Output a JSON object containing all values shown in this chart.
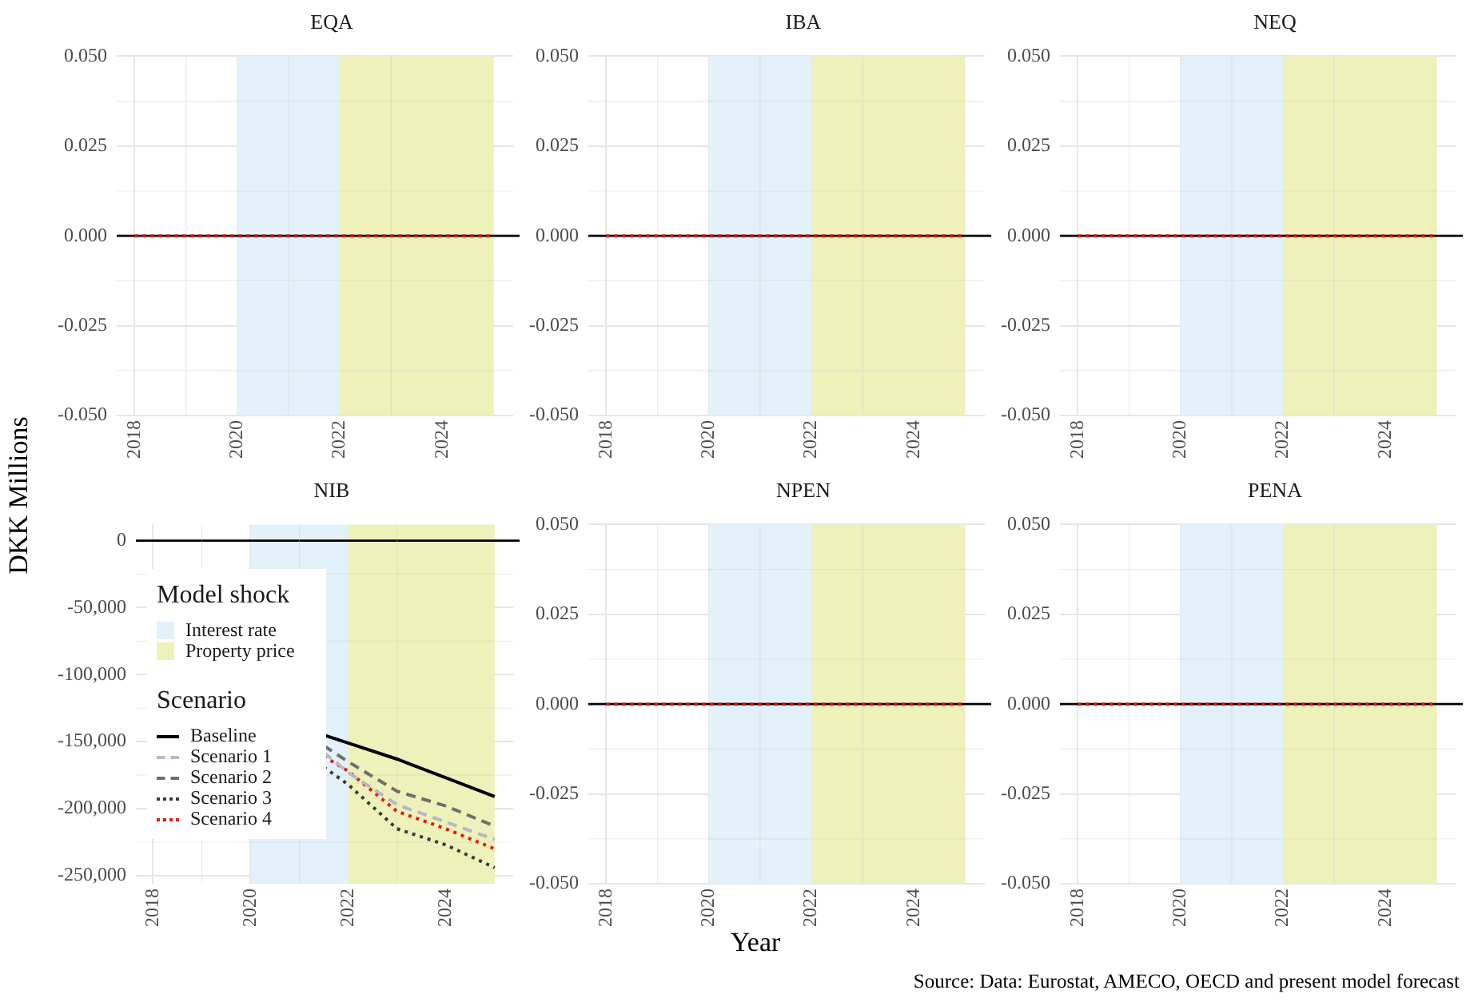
{
  "chart_data": [
    {
      "type": "line",
      "title": "EQA",
      "ylabel": "DKK Millions",
      "x": [
        2018,
        2019,
        2020,
        2021,
        2022,
        2023,
        2024,
        2025
      ],
      "xlim": [
        2017.65,
        2025.38
      ],
      "xticks": [
        2018,
        2020,
        2022,
        2024
      ],
      "ylim": [
        -0.05,
        0.05
      ],
      "yticks": [
        {
          "value": -0.05,
          "label": "-0.050"
        },
        {
          "value": -0.025,
          "label": "-0.025"
        },
        {
          "value": 0,
          "label": "0.000"
        },
        {
          "value": 0.025,
          "label": "0.025"
        },
        {
          "value": 0.05,
          "label": "0.050"
        }
      ],
      "grid": true,
      "bands": [
        {
          "axis": "x",
          "from": 2020,
          "to": 2022,
          "color": "#e3f1fa"
        },
        {
          "axis": "x",
          "from": 2022,
          "to": 2025,
          "color": "#eef1b9"
        }
      ],
      "ref_lines": [
        {
          "axis": "y",
          "value": 0,
          "color": "#000000"
        }
      ],
      "series": [
        {
          "color": "#e8190f",
          "line_style": "dotted",
          "values": [
            0,
            0,
            0,
            0,
            0,
            0,
            0,
            0
          ]
        }
      ]
    },
    {
      "type": "line",
      "title": "IBA",
      "x": [
        2018,
        2019,
        2020,
        2021,
        2022,
        2023,
        2024,
        2025
      ],
      "xlim": [
        2017.65,
        2025.38
      ],
      "xticks": [
        2018,
        2020,
        2022,
        2024
      ],
      "ylim": [
        -0.05,
        0.05
      ],
      "yticks": [
        {
          "value": -0.05,
          "label": "-0.050"
        },
        {
          "value": -0.025,
          "label": "-0.025"
        },
        {
          "value": 0,
          "label": "0.000"
        },
        {
          "value": 0.025,
          "label": "0.025"
        },
        {
          "value": 0.05,
          "label": "0.050"
        }
      ],
      "grid": true,
      "bands": [
        {
          "axis": "x",
          "from": 2020,
          "to": 2022,
          "color": "#e3f1fa"
        },
        {
          "axis": "x",
          "from": 2022,
          "to": 2025,
          "color": "#eef1b9"
        }
      ],
      "ref_lines": [
        {
          "axis": "y",
          "value": 0,
          "color": "#000000"
        }
      ],
      "series": [
        {
          "color": "#e8190f",
          "line_style": "dotted",
          "values": [
            0,
            0,
            0,
            0,
            0,
            0,
            0,
            0
          ]
        }
      ]
    },
    {
      "type": "line",
      "title": "NEQ",
      "x": [
        2018,
        2019,
        2020,
        2021,
        2022,
        2023,
        2024,
        2025
      ],
      "xlim": [
        2017.65,
        2025.38
      ],
      "xticks": [
        2018,
        2020,
        2022,
        2024
      ],
      "ylim": [
        -0.05,
        0.05
      ],
      "yticks": [
        {
          "value": -0.05,
          "label": "-0.050"
        },
        {
          "value": -0.025,
          "label": "-0.025"
        },
        {
          "value": 0,
          "label": "0.000"
        },
        {
          "value": 0.025,
          "label": "0.025"
        },
        {
          "value": 0.05,
          "label": "0.050"
        }
      ],
      "grid": true,
      "bands": [
        {
          "axis": "x",
          "from": 2020,
          "to": 2022,
          "color": "#e3f1fa"
        },
        {
          "axis": "x",
          "from": 2022,
          "to": 2025,
          "color": "#eef1b9"
        }
      ],
      "ref_lines": [
        {
          "axis": "y",
          "value": 0,
          "color": "#000000"
        }
      ],
      "series": [
        {
          "color": "#e8190f",
          "line_style": "dotted",
          "values": [
            0,
            0,
            0,
            0,
            0,
            0,
            0,
            0
          ]
        }
      ]
    },
    {
      "type": "line",
      "title": "NIB",
      "x": [
        2021.5,
        2022,
        2023,
        2024,
        2025
      ],
      "xlim": [
        2017.65,
        2025.38
      ],
      "xticks": [
        2018,
        2020,
        2022,
        2024
      ],
      "ylim": [
        -256000,
        12000
      ],
      "yticks": [
        {
          "value": -250000,
          "label": "-250,000"
        },
        {
          "value": -200000,
          "label": "-200,000"
        },
        {
          "value": -150000,
          "label": "-150,000"
        },
        {
          "value": -100000,
          "label": "-100,000"
        },
        {
          "value": -50000,
          "label": "-50,000"
        },
        0
      ],
      "grid": true,
      "legend": "left",
      "legend_title": "Scenario",
      "annotations": [
        "Model shock"
      ],
      "bands": [
        {
          "axis": "x",
          "from": 2020,
          "to": 2022,
          "label": "Interest rate",
          "color": "#e3f1fa"
        },
        {
          "axis": "x",
          "from": 2022,
          "to": 2025,
          "label": "Property price",
          "color": "#eef1b9"
        }
      ],
      "ref_lines": [
        {
          "axis": "y",
          "value": 0,
          "color": "#000000"
        }
      ],
      "series": [
        {
          "name": "Baseline",
          "color": "#000000",
          "line_style": "solid",
          "values": [
            -145000,
            -151000,
            -163000,
            -177000,
            -191000
          ]
        },
        {
          "name": "Scenario 1",
          "color": "#b3b9c8",
          "line_style": "dashed",
          "values": [
            -158000,
            -173000,
            -197000,
            -210000,
            -223000
          ]
        },
        {
          "name": "Scenario 2",
          "color": "#6e6e6e",
          "line_style": "dashed",
          "values": [
            -153000,
            -165000,
            -187000,
            -198000,
            -213000
          ]
        },
        {
          "name": "Scenario 3",
          "color": "#3a3a3a",
          "line_style": "dotted",
          "values": [
            -169000,
            -182000,
            -215000,
            -227000,
            -244000
          ]
        },
        {
          "name": "Scenario 4",
          "color": "#e8190f",
          "line_style": "dotted",
          "values": [
            -161000,
            -172000,
            -202000,
            -215000,
            -230000
          ]
        }
      ]
    },
    {
      "type": "line",
      "title": "NPEN",
      "xlabel": "Year",
      "x": [
        2018,
        2019,
        2020,
        2021,
        2022,
        2023,
        2024,
        2025
      ],
      "xlim": [
        2017.65,
        2025.38
      ],
      "xticks": [
        2018,
        2020,
        2022,
        2024
      ],
      "ylim": [
        -0.05,
        0.05
      ],
      "yticks": [
        {
          "value": -0.05,
          "label": "-0.050"
        },
        {
          "value": -0.025,
          "label": "-0.025"
        },
        {
          "value": 0,
          "label": "0.000"
        },
        {
          "value": 0.025,
          "label": "0.025"
        },
        {
          "value": 0.05,
          "label": "0.050"
        }
      ],
      "grid": true,
      "bands": [
        {
          "axis": "x",
          "from": 2020,
          "to": 2022,
          "color": "#e3f1fa"
        },
        {
          "axis": "x",
          "from": 2022,
          "to": 2025,
          "color": "#eef1b9"
        }
      ],
      "ref_lines": [
        {
          "axis": "y",
          "value": 0,
          "color": "#000000"
        }
      ],
      "series": [
        {
          "color": "#e8190f",
          "line_style": "dotted",
          "values": [
            0,
            0,
            0,
            0,
            0,
            0,
            0,
            0
          ]
        }
      ]
    },
    {
      "type": "line",
      "title": "PENA",
      "x": [
        2018,
        2019,
        2020,
        2021,
        2022,
        2023,
        2024,
        2025
      ],
      "xlim": [
        2017.65,
        2025.38
      ],
      "xticks": [
        2018,
        2020,
        2022,
        2024
      ],
      "ylim": [
        -0.05,
        0.05
      ],
      "yticks": [
        {
          "value": -0.05,
          "label": "-0.050"
        },
        {
          "value": -0.025,
          "label": "-0.025"
        },
        {
          "value": 0,
          "label": "0.000"
        },
        {
          "value": 0.025,
          "label": "0.025"
        },
        {
          "value": 0.05,
          "label": "0.050"
        }
      ],
      "grid": true,
      "annotations": [
        "Source: Data: Eurostat, AMECO, OECD and present model forecast"
      ],
      "bands": [
        {
          "axis": "x",
          "from": 2020,
          "to": 2022,
          "color": "#e3f1fa"
        },
        {
          "axis": "x",
          "from": 2022,
          "to": 2025,
          "color": "#eef1b9"
        }
      ],
      "ref_lines": [
        {
          "axis": "y",
          "value": 0,
          "color": "#000000"
        }
      ],
      "series": [
        {
          "color": "#e8190f",
          "line_style": "dotted",
          "values": [
            0,
            0,
            0,
            0,
            0,
            0,
            0,
            0
          ]
        }
      ]
    }
  ]
}
